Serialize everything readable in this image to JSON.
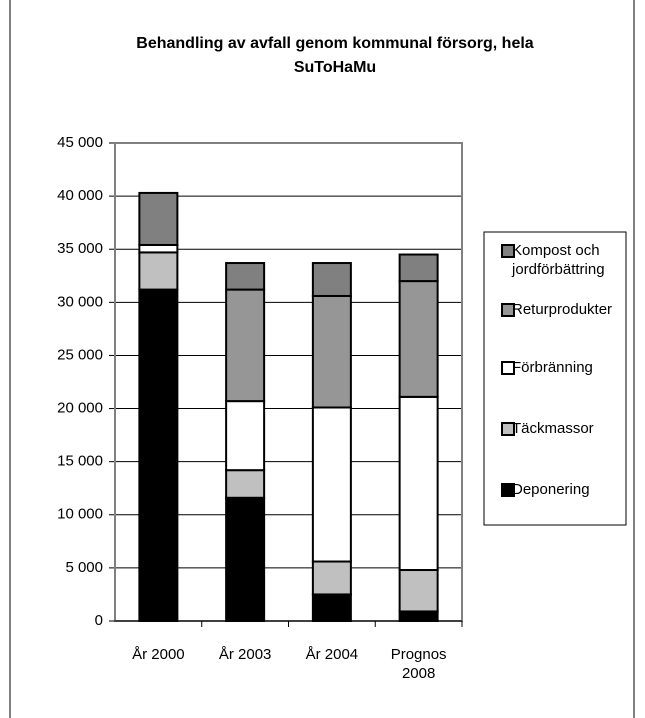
{
  "chart_data": {
    "type": "stacked_bar",
    "title": "Behandling av avfall genom kommunal försorg, hela SuToHaMu",
    "categories": [
      "År 2000",
      "År 2003",
      "År 2004",
      "Prognos 2008"
    ],
    "series": [
      {
        "name": "Deponering",
        "color": "#000000",
        "values": [
          31200,
          11600,
          2500,
          900
        ]
      },
      {
        "name": "Täckmassor",
        "color": "#c0c0c0",
        "values": [
          3500,
          2600,
          3100,
          3900
        ]
      },
      {
        "name": "Förbränning",
        "color": "#ffffff",
        "values": [
          700,
          6500,
          14500,
          16300
        ]
      },
      {
        "name": "Returprodukter",
        "color": "#969696",
        "values": [
          0,
          10500,
          10500,
          10900
        ]
      },
      {
        "name": "Kompost och jordförbättring",
        "color": "#808080",
        "values": [
          4900,
          2500,
          3100,
          2500
        ]
      }
    ],
    "ylim": [
      0,
      45000
    ],
    "yticks": [
      0,
      {
        "value": 5000,
        "label": "5 000"
      },
      {
        "value": 10000,
        "label": "10 000"
      },
      {
        "value": 15000,
        "label": "15 000"
      },
      {
        "value": 20000,
        "label": "20 000"
      },
      {
        "value": 25000,
        "label": "25 000"
      },
      {
        "value": 30000,
        "label": "30 000"
      },
      {
        "value": 35000,
        "label": "35 000"
      },
      {
        "value": 40000,
        "label": "40 000"
      },
      {
        "value": 45000,
        "label": "45 000"
      }
    ],
    "grid": true,
    "legend": "right"
  }
}
